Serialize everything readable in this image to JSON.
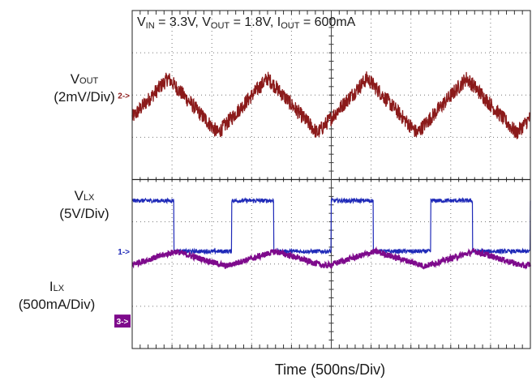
{
  "chart_data": {
    "type": "line",
    "title": "VIN = 3.3V, VOUT = 1.8V, IOUT = 600mA",
    "title_parts": [
      {
        "main": "V",
        "sub": "IN",
        "rest": " = 3.3V, "
      },
      {
        "main": "V",
        "sub": "OUT",
        "rest": " = 1.8V, "
      },
      {
        "main": "I",
        "sub": "OUT",
        "rest": " = 600mA"
      }
    ],
    "xlabel": "Time (500ns/Div)",
    "x_units": "divisions",
    "y_units": "divisions",
    "xlim": [
      0,
      10
    ],
    "ylim": [
      0,
      8
    ],
    "grid": true,
    "divider_at_division": 4,
    "cursor_at_division": 5,
    "series": [
      {
        "name": "VOUT",
        "name_main": "V",
        "name_sub": "OUT",
        "scale": "(2mV/Div)",
        "marker": "2->",
        "marker_style": "arrow",
        "color": "#8b1a1a",
        "waveform": "triangle",
        "period_div": 2.5,
        "first_peak_div": 0.9,
        "min_div": 5.1,
        "max_div": 6.4,
        "noise_div": 0.18,
        "ground_div": 6.0
      },
      {
        "name": "VLX",
        "name_main": "V",
        "name_sub": "LX",
        "scale": "(5V/Div)",
        "marker": "1->",
        "marker_style": "arrow",
        "color": "#1f2ab8",
        "waveform": "square",
        "period_div": 2.5,
        "first_rise_div": 0.0,
        "high_fraction": 0.42,
        "low_div": 2.3,
        "high_div": 3.5,
        "noise_div": 0.05,
        "ground_div": 2.3
      },
      {
        "name": "ILX",
        "name_main": "I",
        "name_sub": "LX",
        "scale": "(500mA/Div)",
        "marker": "3->",
        "marker_style": "badge",
        "color": "#7e0a8c",
        "waveform": "triangle",
        "period_div": 2.5,
        "first_peak_div": 1.1,
        "min_div": 1.95,
        "max_div": 2.3,
        "noise_div": 0.07,
        "ground_div": 0.65
      }
    ]
  }
}
